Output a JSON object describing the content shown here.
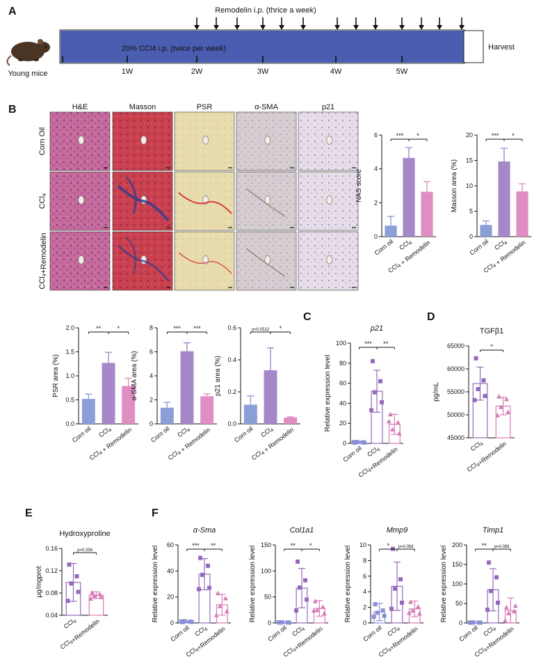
{
  "panel_letters": {
    "A": "A",
    "B": "B",
    "C": "C",
    "D": "D",
    "E": "E",
    "F": "F"
  },
  "schematic": {
    "top_label": "Remodelin i.p. (thrice a week)",
    "bar_label": "20% CCl4 i.p. (twice per week)",
    "mice_label": "Young mice",
    "harvest_label": "Harvest",
    "weeks": [
      "1W",
      "2W",
      "3W",
      "4W",
      "5W"
    ],
    "colors": {
      "bar": "#4a5db0"
    }
  },
  "histology": {
    "stains": [
      "H&E",
      "Masson",
      "PSR",
      "α-SMA",
      "p21"
    ],
    "groups": [
      "Corn Oil",
      "CCl4",
      "CCl4+Remodelin"
    ]
  },
  "colors": {
    "corn_oil": "#8c9ed8",
    "ccl4": "#a588c8",
    "ccl4_rem": "#de8ec2",
    "pt_corn": "#8a8fd6",
    "pt_ccl4": "#9569bd",
    "pt_rem": "#d57ab5"
  },
  "chart_data": [
    {
      "id": "nas",
      "type": "bar",
      "ylabel": "NAS score",
      "categories": [
        "Corn oil",
        "CCl4",
        "CCl4 + Remodelin"
      ],
      "values": [
        0.65,
        4.65,
        2.65
      ],
      "errors": [
        0.55,
        0.6,
        0.6
      ],
      "ylim": [
        0,
        6
      ],
      "yticks": [
        0,
        2,
        4,
        6
      ],
      "sig": [
        {
          "a": 0,
          "b": 1,
          "label": "***"
        },
        {
          "a": 1,
          "b": 2,
          "label": "*"
        }
      ]
    },
    {
      "id": "masson",
      "type": "bar",
      "ylabel": "Masson area (%)",
      "categories": [
        "Corn oil",
        "CCl4",
        "CCl4 + Remodelin"
      ],
      "values": [
        2.3,
        14.8,
        8.9
      ],
      "errors": [
        0.8,
        2.6,
        1.5
      ],
      "ylim": [
        0,
        20
      ],
      "yticks": [
        0,
        5,
        10,
        15,
        20
      ],
      "sig": [
        {
          "a": 0,
          "b": 1,
          "label": "***"
        },
        {
          "a": 1,
          "b": 2,
          "label": "*"
        }
      ]
    },
    {
      "id": "psr",
      "type": "bar",
      "ylabel": "PSR area (%)",
      "categories": [
        "Corn oil",
        "CCl4",
        "CCl4 + Remodelin"
      ],
      "values": [
        0.52,
        1.27,
        0.79
      ],
      "errors": [
        0.1,
        0.22,
        0.16
      ],
      "ylim": [
        0,
        2.0
      ],
      "yticks": [
        "0.0",
        "0.5",
        "1.0",
        "1.5",
        "2.0"
      ],
      "sig": [
        {
          "a": 0,
          "b": 1,
          "label": "**"
        },
        {
          "a": 1,
          "b": 2,
          "label": "*"
        }
      ]
    },
    {
      "id": "asma",
      "type": "bar",
      "ylabel": "α-SMA area (%)",
      "categories": [
        "Corn oil",
        "CCl4",
        "CCl4 + Remodelin"
      ],
      "values": [
        1.35,
        6.05,
        2.3
      ],
      "errors": [
        0.45,
        0.7,
        0.2
      ],
      "ylim": [
        0,
        8
      ],
      "yticks": [
        0,
        2,
        4,
        6,
        8
      ],
      "sig": [
        {
          "a": 0,
          "b": 1,
          "label": "***"
        },
        {
          "a": 1,
          "b": 2,
          "label": "***"
        }
      ]
    },
    {
      "id": "p21a",
      "type": "bar",
      "ylabel": "p21 area (%)",
      "categories": [
        "Corn oil",
        "CCl4",
        "CCl4 + Remodelin"
      ],
      "values": [
        0.12,
        0.335,
        0.04
      ],
      "errors": [
        0.055,
        0.14,
        0.004
      ],
      "ylim": [
        0,
        0.6
      ],
      "yticks": [
        "0.0",
        "0.2",
        "0.4",
        "0.6"
      ],
      "sig": [
        {
          "a": 0,
          "b": 1,
          "label": "p=0.0512",
          "small": true
        },
        {
          "a": 1,
          "b": 2,
          "label": "*"
        }
      ]
    },
    {
      "id": "p21",
      "type": "scatter_bar",
      "title": "p21",
      "ylabel": "Relative expression level",
      "categories": [
        "Corn oil",
        "CCl4",
        "CCl4+Remodelin"
      ],
      "means": [
        1,
        52,
        19
      ],
      "errors": [
        0.8,
        21,
        10
      ],
      "points": [
        [
          0.6,
          1.0,
          1.4,
          0.8,
          1.2
        ],
        [
          82,
          62,
          51,
          41,
          33
        ],
        [
          29,
          21,
          14,
          10,
          22
        ]
      ],
      "ylim": [
        0,
        100
      ],
      "yticks": [
        0,
        20,
        40,
        60,
        80,
        100
      ],
      "sig": [
        {
          "a": 0,
          "b": 1,
          "label": "***"
        },
        {
          "a": 1,
          "b": 2,
          "label": "**"
        }
      ]
    },
    {
      "id": "tgf",
      "type": "scatter_bar",
      "title": "TGFβ1",
      "ylabel": "pg/mL",
      "categories": [
        "CCl4",
        "CCl4+Remodelin"
      ],
      "means": [
        56800,
        51900
      ],
      "errors": [
        3600,
        1900
      ],
      "points": [
        [
          62300,
          57500,
          55600,
          54100,
          53200
        ],
        [
          54000,
          53400,
          51700,
          50600,
          49900
        ]
      ],
      "ylim": [
        45000,
        65000
      ],
      "yticks": [
        45000,
        50000,
        55000,
        60000,
        65000
      ],
      "sig": [
        {
          "a": 0,
          "b": 1,
          "label": "*"
        }
      ]
    },
    {
      "id": "hyp",
      "type": "scatter_bar",
      "title": "Hydroxyproline",
      "ylabel": "μg/mgprot",
      "categories": [
        "CCl4",
        "CCl4+Remodelin"
      ],
      "means": [
        0.099,
        0.076
      ],
      "errors": [
        0.034,
        0.006
      ],
      "points": [
        [
          0.131,
          0.11,
          0.097,
          0.082,
          0.066
        ],
        [
          0.081,
          0.078,
          0.075,
          0.073,
          0.07
        ]
      ],
      "ylim": [
        0.04,
        0.16
      ],
      "yticks": [
        "0.04",
        "0.08",
        "0.12",
        "0.16"
      ],
      "sig": [
        {
          "a": 0,
          "b": 1,
          "label": "p=0.256",
          "small": true
        }
      ]
    },
    {
      "id": "asma_g",
      "type": "scatter_bar",
      "title": "α-Sma",
      "ylabel": "Relative expression level",
      "categories": [
        "Corn oil",
        "CCl4",
        "CCl4+Remodelin"
      ],
      "means": [
        1,
        37.5,
        14
      ],
      "errors": [
        0.5,
        12,
        8
      ],
      "points": [
        [
          0.6,
          1.0,
          1.4,
          0.8,
          1.2
        ],
        [
          50,
          44,
          37,
          27,
          26
        ],
        [
          23,
          19,
          13,
          9,
          6
        ]
      ],
      "ylim": [
        0,
        60
      ],
      "yticks": [
        0,
        20,
        40,
        60
      ],
      "sig": [
        {
          "a": 0,
          "b": 1,
          "label": "***"
        },
        {
          "a": 1,
          "b": 2,
          "label": "**"
        }
      ]
    },
    {
      "id": "col",
      "type": "scatter_bar",
      "title": "Col1a1",
      "ylabel": "Relative expression level",
      "categories": [
        "Corn oil",
        "CCl4",
        "CCl4+Remodelin"
      ],
      "means": [
        1,
        67,
        28
      ],
      "errors": [
        0.6,
        38,
        15
      ],
      "points": [
        [
          0.6,
          1.0,
          1.4,
          0.8,
          1.2
        ],
        [
          118,
          82,
          68,
          45,
          24
        ],
        [
          42,
          31,
          25,
          18,
          24
        ]
      ],
      "ylim": [
        0,
        150
      ],
      "yticks": [
        0,
        50,
        100,
        150
      ],
      "sig": [
        {
          "a": 0,
          "b": 1,
          "label": "**"
        },
        {
          "a": 1,
          "b": 2,
          "label": "*"
        }
      ]
    },
    {
      "id": "mmp",
      "type": "scatter_bar",
      "title": "Mmp9",
      "ylabel": "Relative expression level",
      "categories": [
        "Corn oil",
        "CCl4",
        "CCl4+Remodelin"
      ],
      "means": [
        1.4,
        4.7,
        1.8
      ],
      "errors": [
        1.1,
        3.1,
        1.0
      ],
      "points": [
        [
          2.4,
          1.6,
          1.3,
          0.9,
          0.8
        ],
        [
          9.5,
          5.6,
          4.4,
          2.6,
          1.8
        ],
        [
          2.7,
          2.1,
          1.6,
          1.2,
          1.3
        ]
      ],
      "ylim": [
        0,
        10
      ],
      "yticks": [
        0,
        2,
        4,
        6,
        8,
        10
      ],
      "sig": [
        {
          "a": 0,
          "b": 1,
          "label": "*"
        },
        {
          "a": 1,
          "b": 2,
          "label": "p=0.068",
          "small": true
        }
      ]
    },
    {
      "id": "timp",
      "type": "scatter_bar",
      "title": "Timp1",
      "ylabel": "Relative expression level",
      "categories": [
        "Corn oil",
        "CCl4",
        "CCl4+Remodelin"
      ],
      "means": [
        1,
        85,
        32
      ],
      "errors": [
        0.8,
        54,
        32
      ],
      "points": [
        [
          0.6,
          1.0,
          1.4,
          0.8,
          1.2
        ],
        [
          155,
          117,
          82,
          52,
          34
        ],
        [
          40,
          30,
          25,
          44,
          6
        ]
      ],
      "ylim": [
        0,
        200
      ],
      "yticks": [
        0,
        50,
        100,
        150,
        200
      ],
      "sig": [
        {
          "a": 0,
          "b": 1,
          "label": "**"
        },
        {
          "a": 1,
          "b": 2,
          "label": "p=0.086",
          "small": true
        }
      ]
    }
  ]
}
